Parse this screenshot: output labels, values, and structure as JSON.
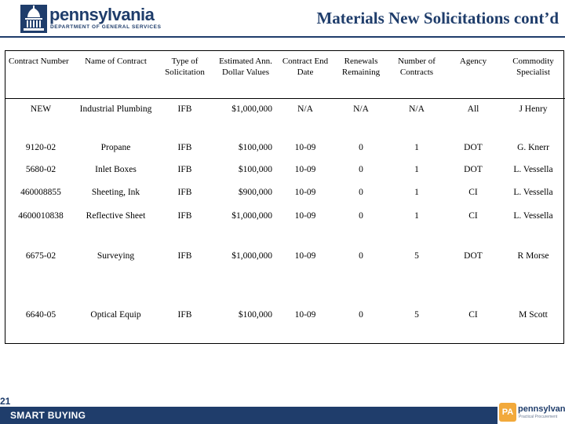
{
  "header": {
    "logo_wordmark": "pennsylvania",
    "logo_subtitle": "DEPARTMENT OF GENERAL SERVICES",
    "title": "Materials New Solicitations cont’d"
  },
  "table": {
    "columns": [
      "Contract Number",
      "Name of Contract",
      "Type of Solicitation",
      "Estimated Ann. Dollar Values",
      "Contract End Date",
      "Renewals Remaining",
      "Number of Contracts",
      "Agency",
      "Commodity Specialist"
    ],
    "rows": [
      [
        "NEW",
        "Industrial Plumbing",
        "IFB",
        "$1,000,000",
        "N/A",
        "N/A",
        "N/A",
        "All",
        "J Henry"
      ],
      [
        "9120-02",
        "Propane",
        "IFB",
        "$100,000",
        "10-09",
        "0",
        "1",
        "DOT",
        "G. Knerr"
      ],
      [
        "5680-02",
        "Inlet Boxes",
        "IFB",
        "$100,000",
        "10-09",
        "0",
        "1",
        "DOT",
        "L. Vessella"
      ],
      [
        "460008855",
        "Sheeting, Ink",
        "IFB",
        "$900,000",
        "10-09",
        "0",
        "1",
        "CI",
        "L. Vessella"
      ],
      [
        "4600010838",
        "Reflective Sheet",
        "IFB",
        "$1,000,000",
        "10-09",
        "0",
        "1",
        "CI",
        "L. Vessella"
      ],
      [
        "6675-02",
        "Surveying",
        "IFB",
        "$1,000,000",
        "10-09",
        "0",
        "5",
        "DOT",
        "R Morse"
      ],
      [
        "6640-05",
        "Optical Equip",
        "IFB",
        "$100,000",
        "10-09",
        "0",
        "5",
        "CI",
        "M Scott"
      ]
    ]
  },
  "footer": {
    "page_number": "21",
    "label": "SMART BUYING",
    "logo_mark": "PA",
    "logo_wordmark": "pennsylvania",
    "logo_tagline": "Practical Procurement"
  }
}
